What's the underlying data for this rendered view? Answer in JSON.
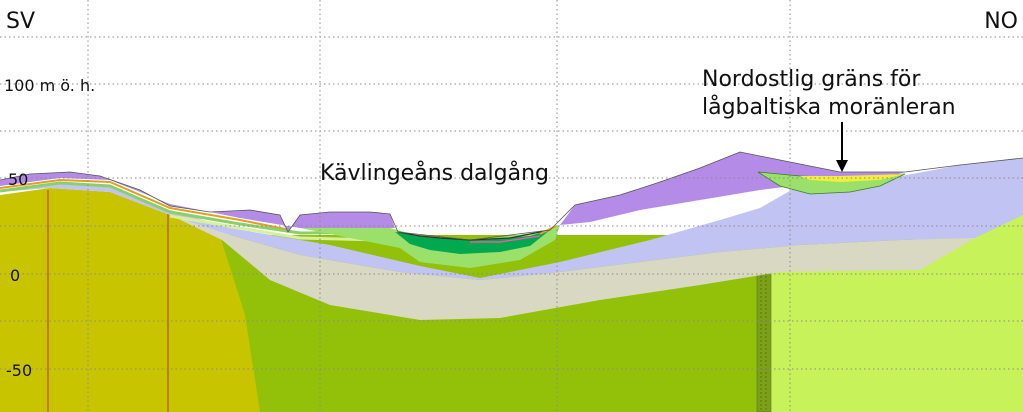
{
  "orientation": {
    "left": "SV",
    "right": "NO"
  },
  "elevation_labels": {
    "e100": "100 m ö. h.",
    "e50": "50",
    "e0": "0",
    "em50": "-50"
  },
  "annotations": {
    "valley": "Kävlingeåns dalgång",
    "boundary_line1": "Nordostlig gräns för",
    "boundary_line2": "lågbaltiska moränleran"
  },
  "colors": {
    "left_bedrock": "#c9c400",
    "bedrock_green": "#93c10a",
    "bedrock_light_green": "#c8f25a",
    "tan_sediment": "#d9d8c2",
    "lavender_till": "#c1c3f2",
    "purple_top": "#b58be8",
    "valley_green": "#00a850",
    "yellow_clay": "#f3ee3a"
  }
}
